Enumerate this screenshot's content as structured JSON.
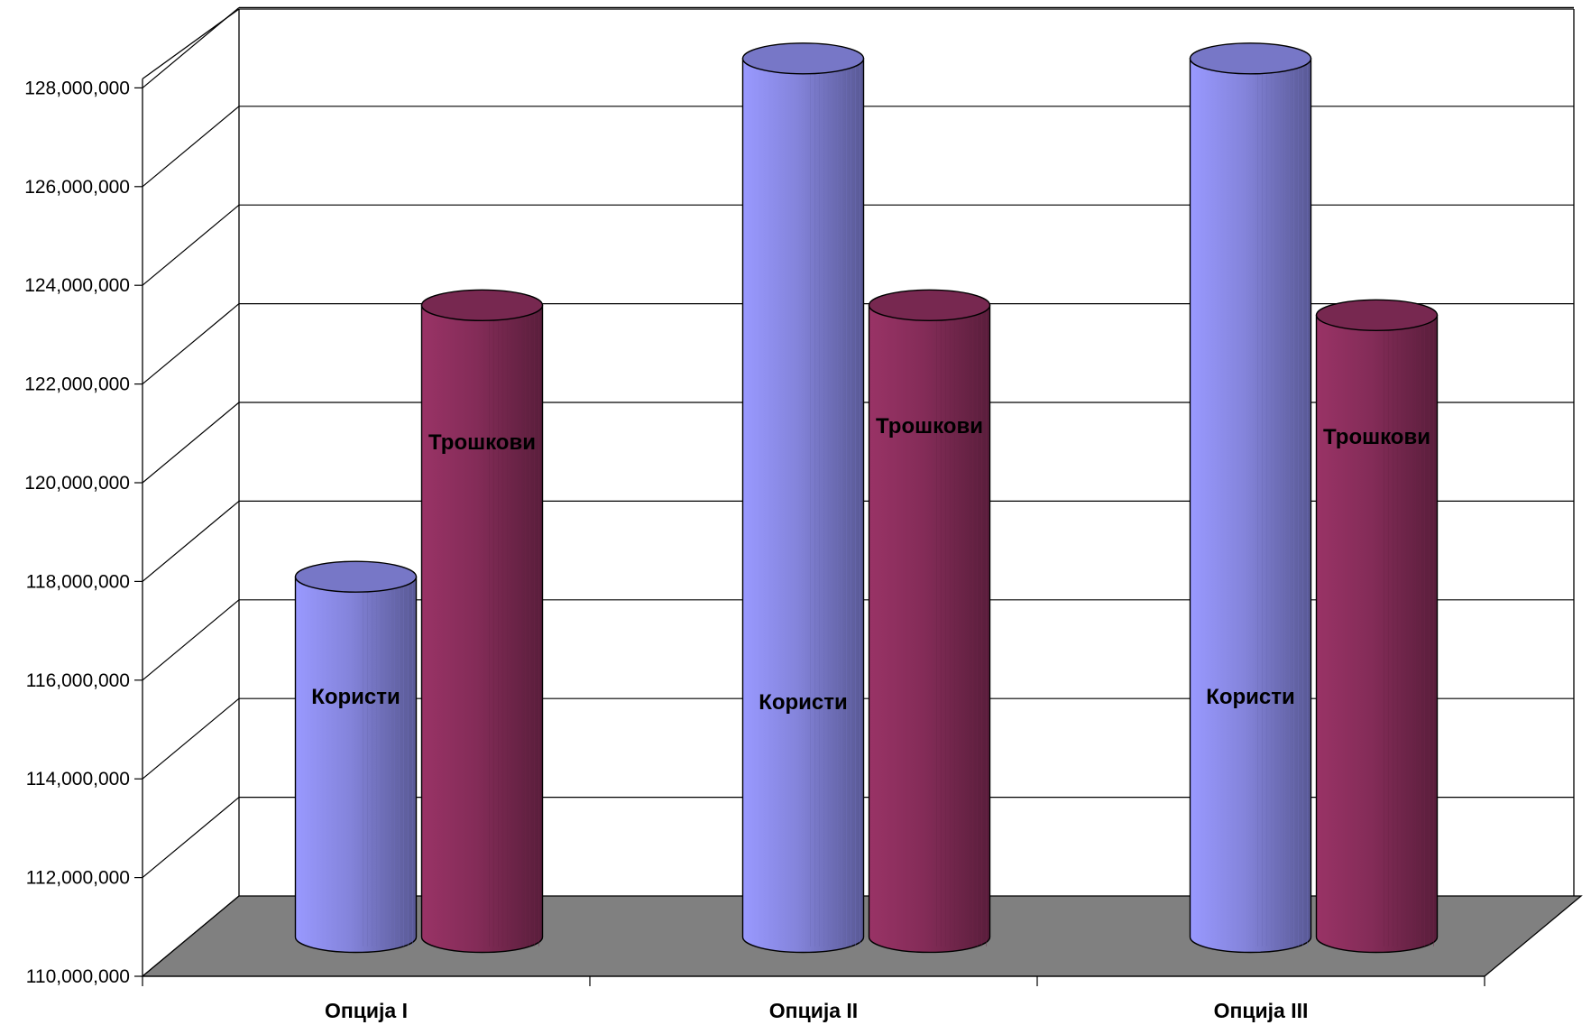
{
  "chart_data": {
    "type": "bar",
    "style": "3d-cylinder",
    "categories": [
      "Опција I",
      "Опција II",
      "Опција III"
    ],
    "series": [
      {
        "name": "Користи",
        "values": [
          117300000,
          127800000,
          127800000
        ],
        "color": "#9999ff"
      },
      {
        "name": "Трошкови",
        "values": [
          122800000,
          122800000,
          122600000
        ],
        "color": "#993366"
      }
    ],
    "y_ticks": [
      "110,000,000",
      "112,000,000",
      "114,000,000",
      "116,000,000",
      "118,000,000",
      "120,000,000",
      "122,000,000",
      "124,000,000",
      "126,000,000",
      "128,000,000"
    ],
    "ylim": [
      110000000,
      128000000
    ],
    "y_step": 2000000,
    "grid": true,
    "legend": "none",
    "data_labels": "series name",
    "floor_color": "#808080"
  }
}
